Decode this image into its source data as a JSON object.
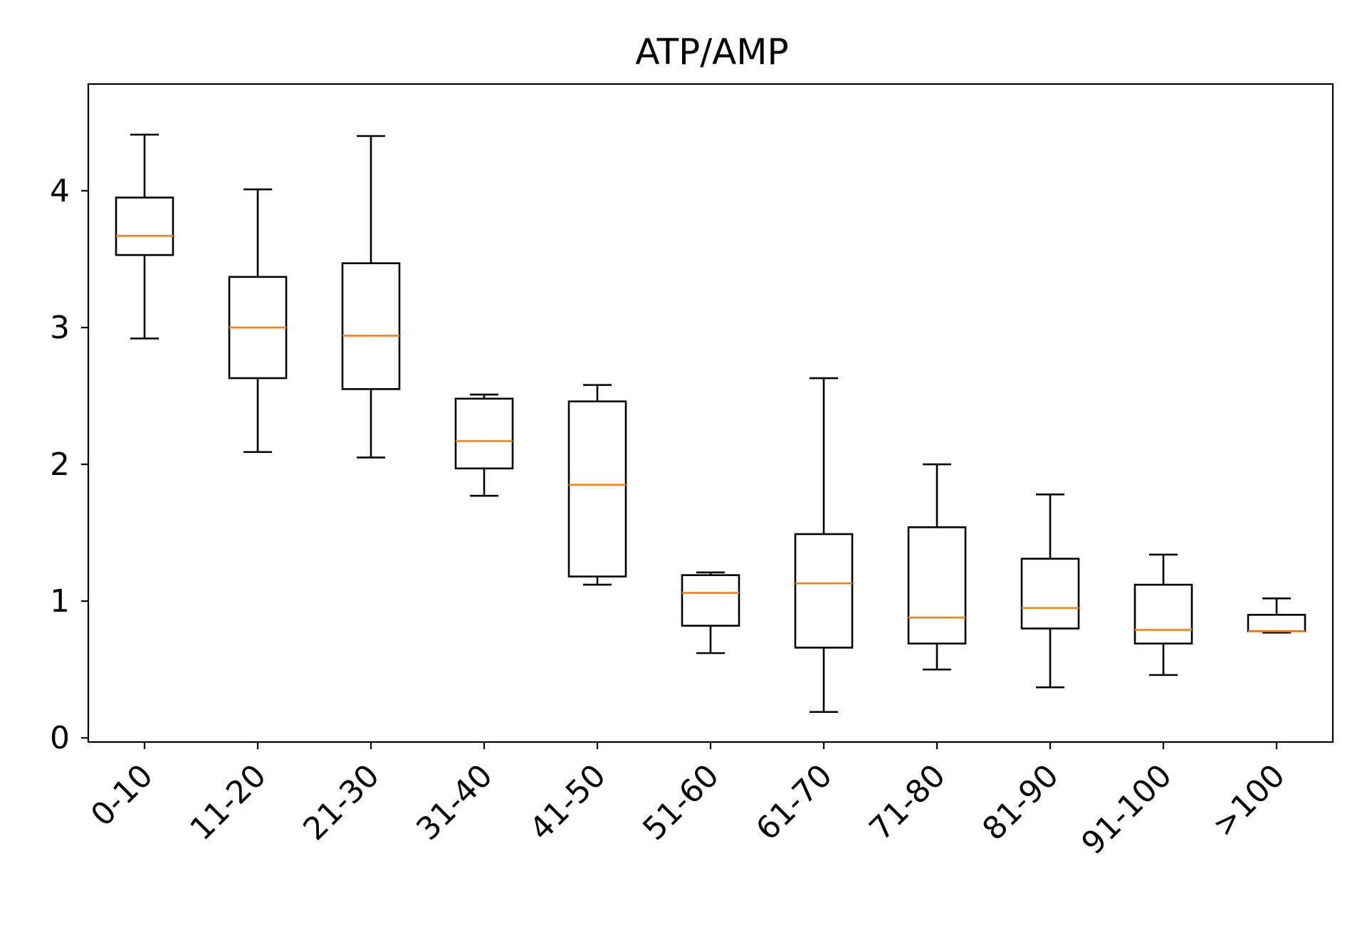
{
  "chart_data": {
    "type": "boxplot",
    "title": "ATP/AMP",
    "xlabel": "",
    "ylabel": "",
    "categories": [
      "0-10",
      "11-20",
      "21-30",
      "31-40",
      "41-50",
      "51-60",
      "61-70",
      "71-80",
      "81-90",
      "91-100",
      ">100"
    ],
    "boxes": [
      {
        "category": "0-10",
        "whisker_low": 2.92,
        "q1": 3.53,
        "median": 3.67,
        "q3": 3.95,
        "whisker_high": 4.41
      },
      {
        "category": "11-20",
        "whisker_low": 2.09,
        "q1": 2.63,
        "median": 3.0,
        "q3": 3.37,
        "whisker_high": 4.01
      },
      {
        "category": "21-30",
        "whisker_low": 2.05,
        "q1": 2.55,
        "median": 2.94,
        "q3": 3.47,
        "whisker_high": 4.4
      },
      {
        "category": "31-40",
        "whisker_low": 1.77,
        "q1": 1.97,
        "median": 2.17,
        "q3": 2.48,
        "whisker_high": 2.51
      },
      {
        "category": "41-50",
        "whisker_low": 1.12,
        "q1": 1.18,
        "median": 1.85,
        "q3": 2.46,
        "whisker_high": 2.58
      },
      {
        "category": "51-60",
        "whisker_low": 0.62,
        "q1": 0.82,
        "median": 1.06,
        "q3": 1.19,
        "whisker_high": 1.21
      },
      {
        "category": "61-70",
        "whisker_low": 0.19,
        "q1": 0.66,
        "median": 1.13,
        "q3": 1.49,
        "whisker_high": 2.63
      },
      {
        "category": "71-80",
        "whisker_low": 0.5,
        "q1": 0.69,
        "median": 0.88,
        "q3": 1.54,
        "whisker_high": 2.0
      },
      {
        "category": "81-90",
        "whisker_low": 0.37,
        "q1": 0.8,
        "median": 0.95,
        "q3": 1.31,
        "whisker_high": 1.78
      },
      {
        "category": "91-100",
        "whisker_low": 0.46,
        "q1": 0.69,
        "median": 0.79,
        "q3": 1.12,
        "whisker_high": 1.34
      },
      {
        "category": ">100",
        "whisker_low": 0.77,
        "q1": 0.78,
        "median": 0.78,
        "q3": 0.9,
        "whisker_high": 1.02
      }
    ],
    "yticks": [
      "0",
      "1",
      "2",
      "3",
      "4"
    ],
    "ylim": [
      -0.03,
      4.78
    ],
    "grid": false,
    "colors": {
      "box": "#000000",
      "median": "#ff7f0e"
    }
  }
}
